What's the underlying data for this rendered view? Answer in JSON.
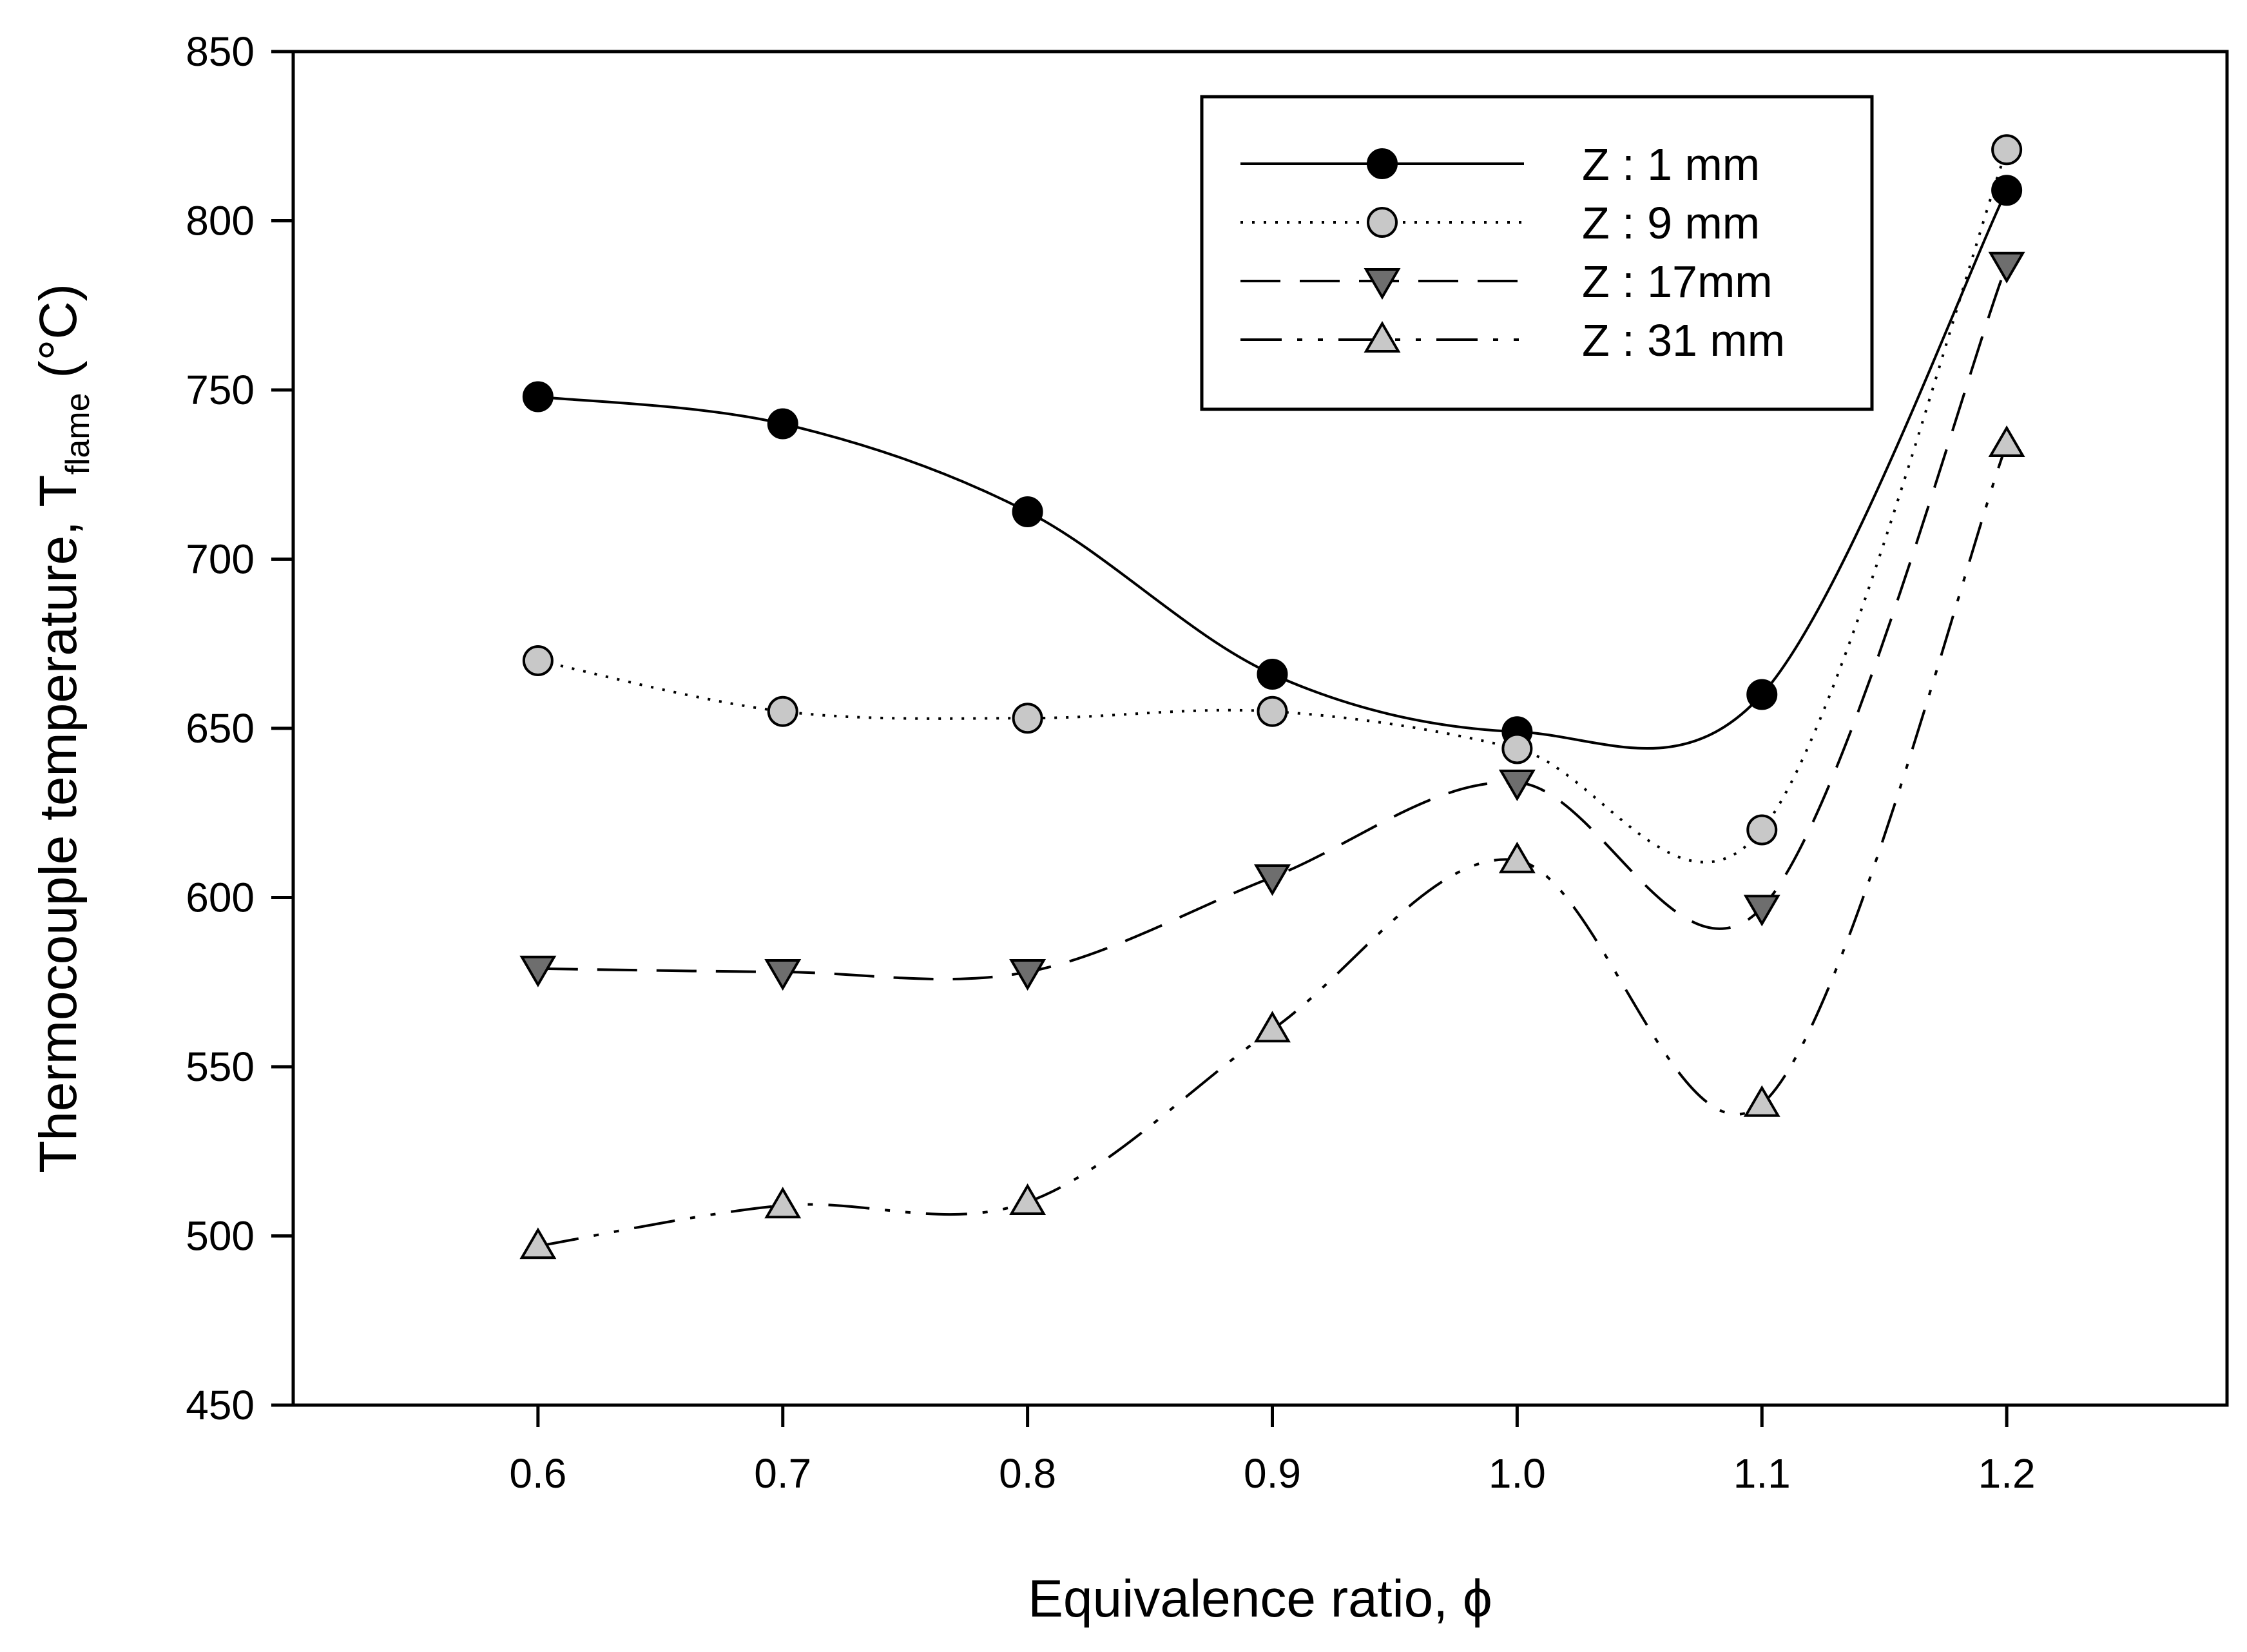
{
  "chart_data": {
    "type": "line",
    "title": "",
    "xlabel": "Equivalence ratio, ϕ",
    "ylabel": {
      "main": "Thermocouple temperature, T",
      "subscript": "flame",
      "unit": " (°C)"
    },
    "x": [
      0.6,
      0.7,
      0.8,
      0.9,
      1.0,
      1.1,
      1.2
    ],
    "xticks": [
      "0.6",
      "0.7",
      "0.8",
      "0.9",
      "1.0",
      "1.1",
      "1.2"
    ],
    "xlim": [
      0.5,
      1.29
    ],
    "ylim": [
      450,
      850
    ],
    "yticks": [
      "450",
      "500",
      "550",
      "600",
      "650",
      "700",
      "750",
      "800",
      "850"
    ],
    "grid": false,
    "legend_position": "top-right",
    "series": [
      {
        "name": "Z : 1 mm",
        "values": [
          748,
          740,
          714,
          666,
          649,
          660,
          809
        ],
        "marker": "circle",
        "fill": "#000000",
        "dash": ""
      },
      {
        "name": "Z : 9 mm",
        "values": [
          670,
          655,
          653,
          655,
          644,
          620,
          821
        ],
        "marker": "circle",
        "fill": "#c8c8c8",
        "dash": "dotted"
      },
      {
        "name": "Z : 17mm",
        "values": [
          579,
          578,
          578,
          606,
          634,
          597,
          787
        ],
        "marker": "triangle-down",
        "fill": "#6e6e6e",
        "dash": "dashed"
      },
      {
        "name": "Z : 31 mm",
        "values": [
          497,
          509,
          510,
          561,
          611,
          539,
          734
        ],
        "marker": "triangle-up",
        "fill": "#c8c8c8",
        "dash": "dash-dot-dot"
      }
    ]
  }
}
